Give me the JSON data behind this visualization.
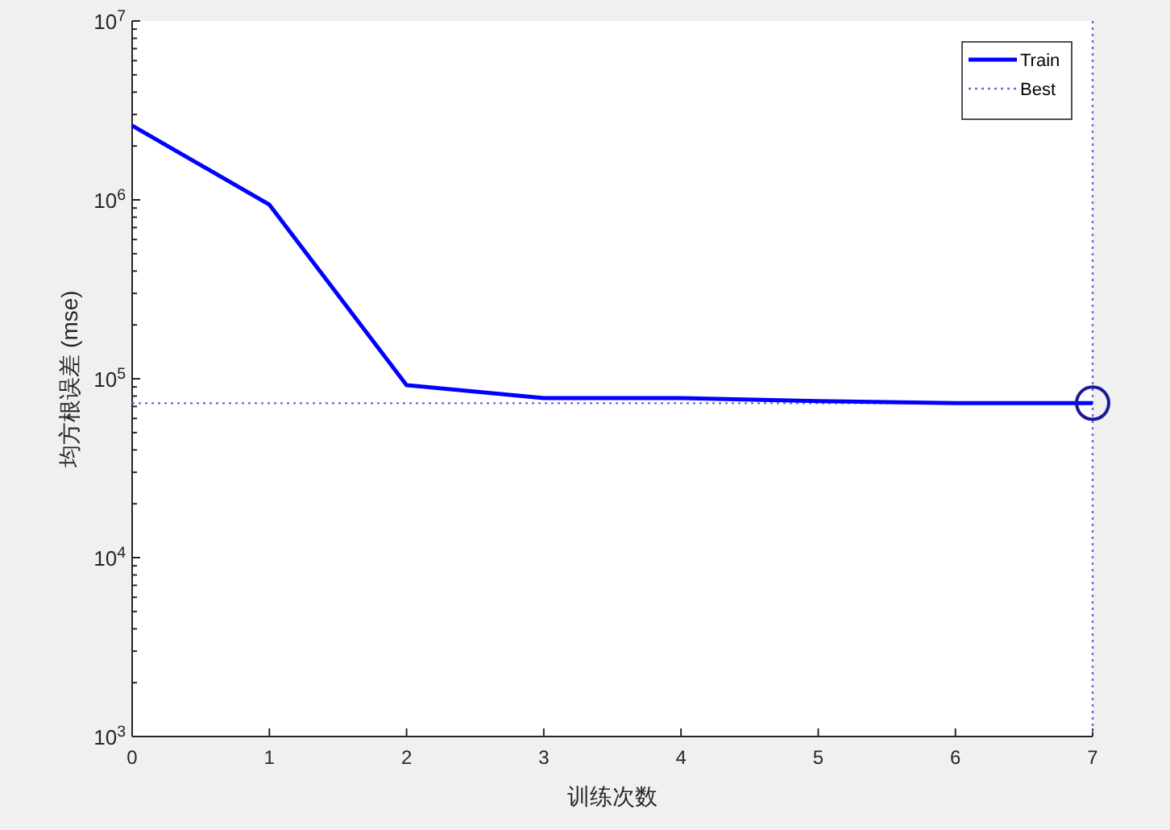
{
  "chart_data": {
    "type": "line",
    "xlabel": "训练次数",
    "ylabel": "均方根误差 (mse)",
    "x": [
      0,
      1,
      2,
      3,
      4,
      5,
      6,
      7
    ],
    "series": [
      {
        "name": "Train",
        "color": "#0000ff",
        "values": [
          2600000,
          940000,
          92000,
          78000,
          78000,
          75000,
          73000,
          73000
        ]
      },
      {
        "type": "scatter",
        "color": "#1a1a99",
        "marker": "circle",
        "x": [
          7
        ],
        "values": [
          73000
        ]
      }
    ],
    "ref_lines": [
      {
        "axis": "y",
        "value": 73000,
        "label": "Best",
        "color": "#6b6bd6",
        "line_style": "dotted"
      },
      {
        "axis": "x",
        "value": 7,
        "color": "#6b6bd6",
        "line_style": "dotted"
      }
    ],
    "log": "y",
    "xlim": [
      0,
      7
    ],
    "ylim": [
      1000,
      10000000
    ],
    "xticks": [
      0,
      1,
      2,
      3,
      4,
      5,
      6,
      7
    ],
    "yticks": [
      {
        "value": 1000,
        "label": "10$^{3}$"
      },
      {
        "value": 10000,
        "label": "10$^{4}$"
      },
      {
        "value": 100000,
        "label": "10$^{5}$"
      },
      {
        "value": 1000000,
        "label": "10$^{6}$"
      },
      {
        "value": 10000000,
        "label": "10$^{7}$"
      }
    ],
    "legend": "top right",
    "grid": false
  }
}
